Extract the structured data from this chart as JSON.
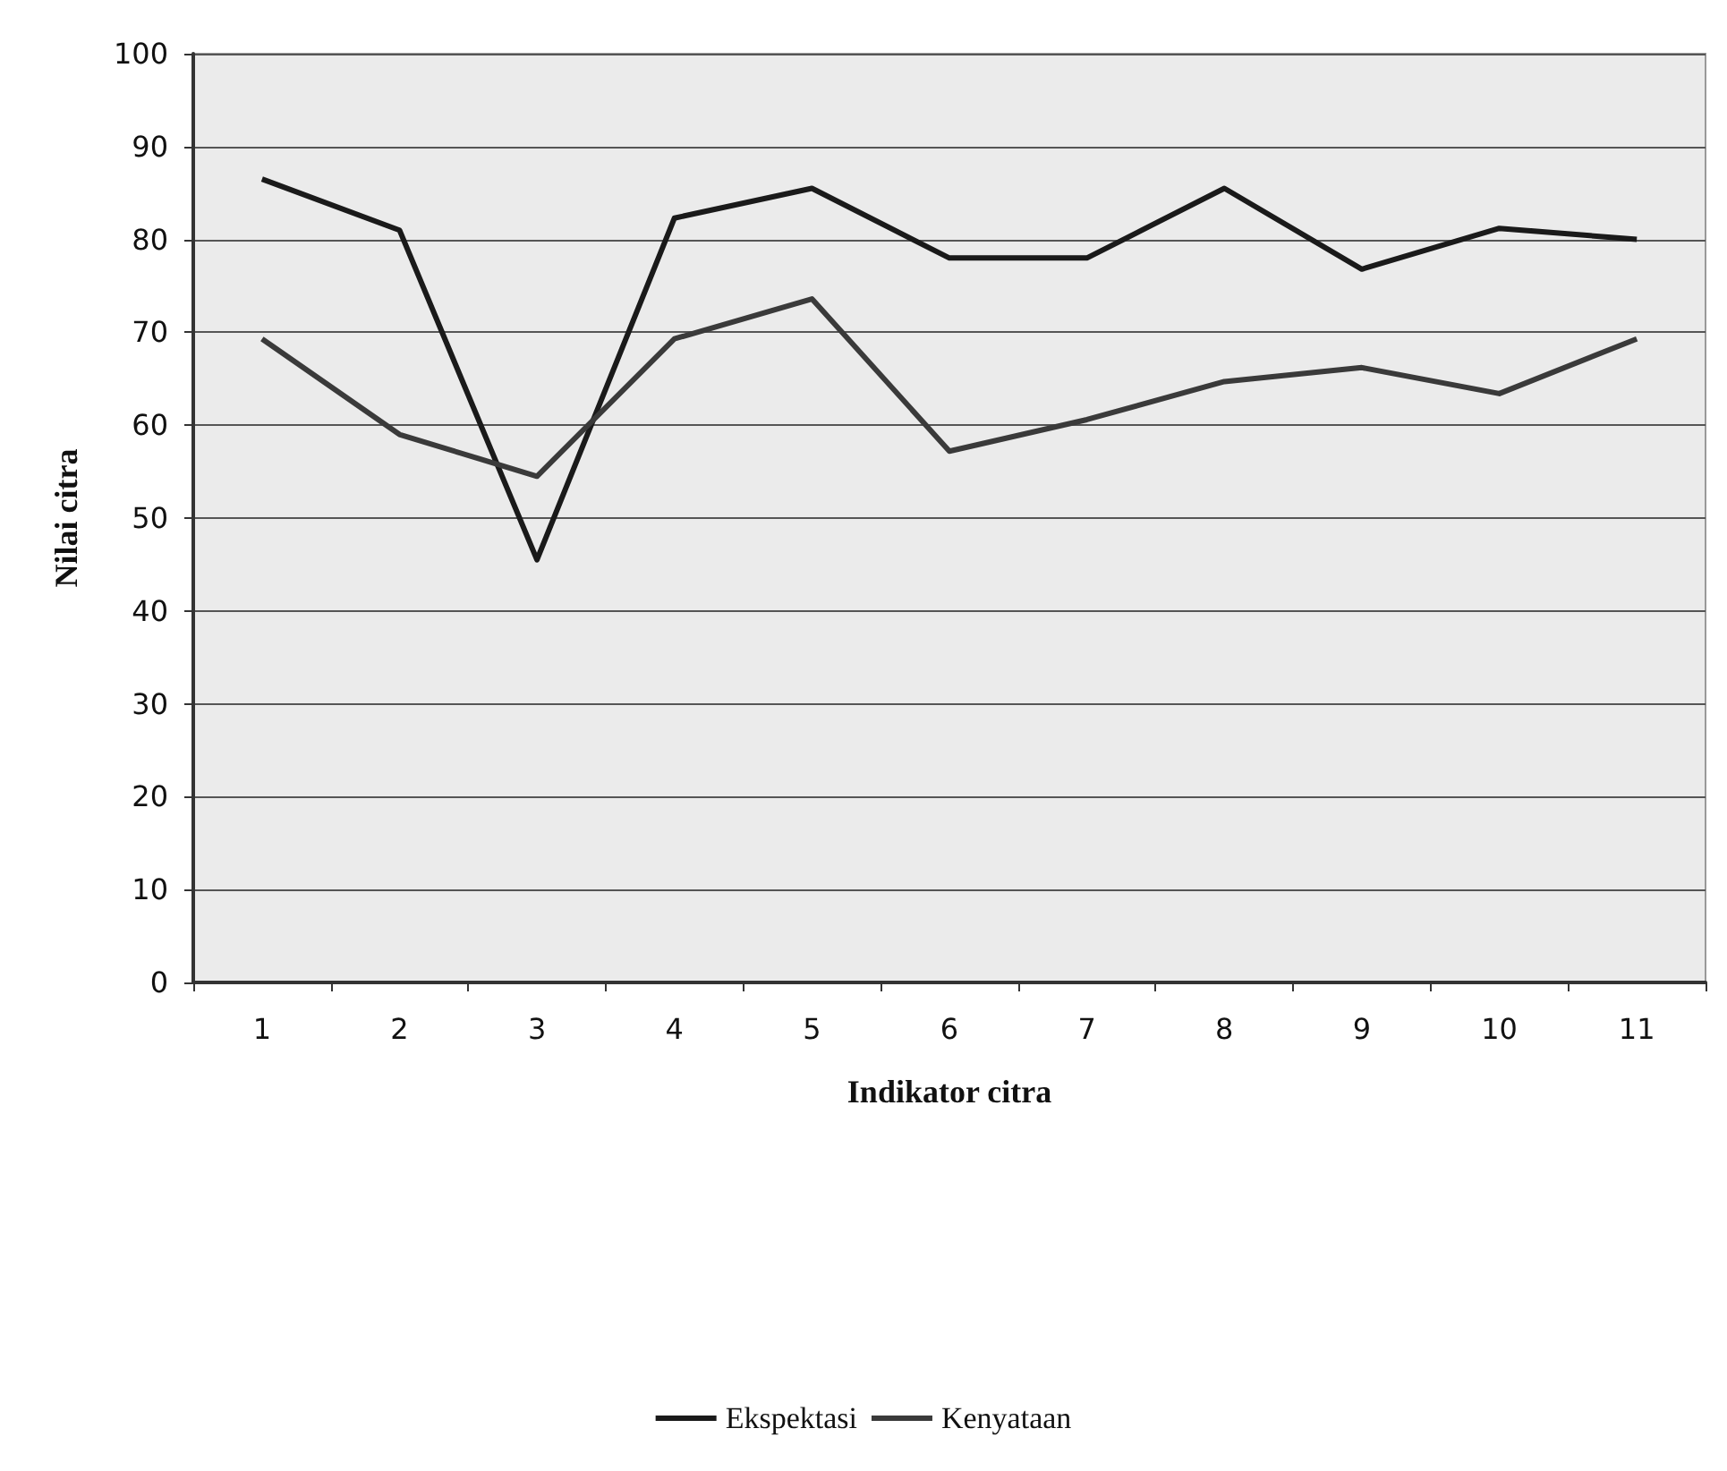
{
  "chart_data": {
    "type": "line",
    "xlabel": "Indikator citra",
    "ylabel": "Nilai citra",
    "categories": [
      "1",
      "2",
      "3",
      "4",
      "5",
      "6",
      "7",
      "8",
      "9",
      "10",
      "11"
    ],
    "series": [
      {
        "name": "Ekspektasi",
        "color": "#1a1a1a",
        "values": [
          86.5,
          81,
          45.5,
          82.3,
          85.5,
          78,
          78,
          85.5,
          76.8,
          81.2,
          80
        ]
      },
      {
        "name": "Kenyataan",
        "color": "#3a3a3a",
        "values": [
          69.3,
          59,
          54.5,
          69.3,
          73.6,
          57.2,
          60.6,
          64.7,
          66.2,
          63.4,
          69.3
        ]
      }
    ],
    "ylim": [
      0,
      100
    ],
    "yticks": [
      0,
      10,
      20,
      30,
      40,
      50,
      60,
      70,
      80,
      90,
      100
    ],
    "grid": "y",
    "legend": "bottom",
    "marker": "none",
    "line_style": "solid"
  }
}
